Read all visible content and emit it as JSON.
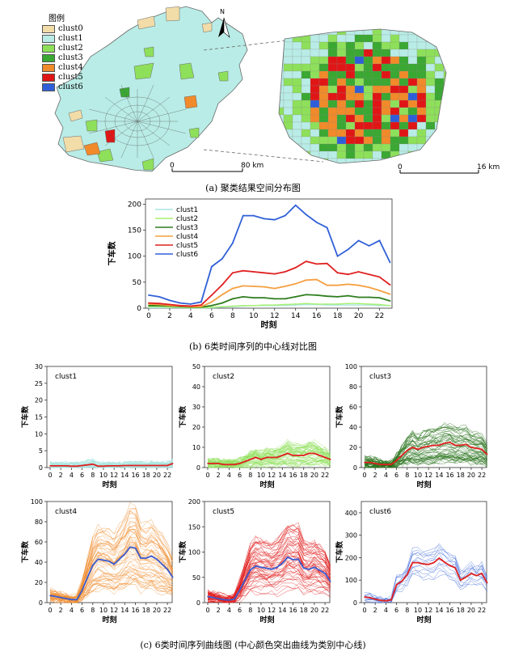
{
  "panel_a": {
    "caption": "(a) 聚类结果空间分布图",
    "legend_title": "图例",
    "legend": [
      {
        "label": "clust0",
        "color": "#f2dca8"
      },
      {
        "label": "clust1",
        "color": "#b9ece6"
      },
      {
        "label": "clust2",
        "color": "#8ee05a"
      },
      {
        "label": "clust3",
        "color": "#3aa832"
      },
      {
        "label": "clust4",
        "color": "#f08a2a"
      },
      {
        "label": "clust5",
        "color": "#e01616"
      },
      {
        "label": "clust6",
        "color": "#2f5fd8"
      }
    ],
    "north_label": "N",
    "scale1": {
      "start": "0",
      "end": "80 km"
    },
    "scale2": {
      "start": "0",
      "end": "16 km"
    },
    "colors": {
      "base": "#b9ece6",
      "road": "#555555",
      "border": "#6a6a6a"
    }
  },
  "panel_b": {
    "caption": "(b) 6类时间序列的中心线对比图"
  },
  "panel_c": {
    "caption": "(c) 6类时间序列曲线图 (中心颜色突出曲线为类别中心线)"
  },
  "chart_data": [
    {
      "type": "line",
      "id": "center-comparison",
      "xlabel": "时刻",
      "ylabel": "下车数",
      "ylim": [
        0,
        210
      ],
      "yticks": [
        0,
        50,
        100,
        150,
        200
      ],
      "xticks": [
        0,
        2,
        4,
        6,
        8,
        10,
        12,
        14,
        16,
        18,
        20,
        22
      ],
      "x": [
        0,
        1,
        2,
        3,
        4,
        5,
        6,
        7,
        8,
        9,
        10,
        11,
        12,
        13,
        14,
        15,
        16,
        17,
        18,
        19,
        20,
        21,
        22,
        23
      ],
      "legend_position": "top-left",
      "series": [
        {
          "name": "clust1",
          "color": "#a8e6e0",
          "values": [
            1,
            1,
            1,
            1,
            0.5,
            0.5,
            1,
            2,
            3,
            4,
            5,
            5,
            5,
            5,
            6,
            7,
            7,
            6,
            6,
            6,
            6,
            6,
            5,
            5
          ]
        },
        {
          "name": "clust2",
          "color": "#a8f070",
          "values": [
            3,
            3,
            2,
            2,
            1,
            1,
            2,
            3,
            4,
            5,
            5,
            6,
            6,
            7,
            8,
            9,
            8,
            8,
            8,
            9,
            9,
            8,
            7,
            5
          ]
        },
        {
          "name": "clust3",
          "color": "#2e7d1e",
          "values": [
            5,
            5,
            4,
            3,
            2,
            2,
            5,
            10,
            18,
            22,
            20,
            20,
            18,
            18,
            22,
            26,
            25,
            23,
            22,
            24,
            21,
            21,
            20,
            14
          ]
        },
        {
          "name": "clust4",
          "color": "#f4a040",
          "values": [
            8,
            7,
            5,
            4,
            3,
            3,
            12,
            26,
            38,
            43,
            42,
            41,
            38,
            42,
            47,
            54,
            55,
            44,
            44,
            46,
            44,
            40,
            34,
            27
          ]
        },
        {
          "name": "clust5",
          "color": "#e02020",
          "values": [
            10,
            9,
            7,
            5,
            4,
            6,
            25,
            45,
            68,
            72,
            70,
            68,
            66,
            70,
            78,
            90,
            85,
            86,
            68,
            65,
            70,
            65,
            60,
            45
          ]
        },
        {
          "name": "clust6",
          "color": "#3060d8",
          "values": [
            25,
            22,
            15,
            10,
            8,
            12,
            80,
            95,
            125,
            178,
            178,
            172,
            170,
            178,
            198,
            180,
            165,
            155,
            100,
            113,
            130,
            120,
            130,
            88
          ]
        }
      ]
    },
    {
      "type": "line",
      "id": "clust1",
      "title": "clust1",
      "xlabel": "时刻",
      "ylabel": "下车数",
      "ylim": [
        0,
        30
      ],
      "yticks": [
        0,
        5,
        10,
        15,
        20,
        25,
        30
      ],
      "xticks": [
        0,
        2,
        4,
        6,
        8,
        10,
        12,
        14,
        16,
        18,
        20,
        22
      ],
      "bundle_color": "#a8e6e0",
      "center_color": "#e02020",
      "center": [
        0.5,
        0.5,
        0.5,
        0.5,
        0.4,
        0.4,
        0.6,
        0.8,
        1.0,
        0.4,
        0.4,
        0.5,
        0.5,
        0.5,
        0.6,
        0.6,
        0.6,
        0.6,
        0.6,
        0.6,
        0.6,
        0.6,
        0.6,
        1.2
      ]
    },
    {
      "type": "line",
      "id": "clust2",
      "title": "clust2",
      "xlabel": "时刻",
      "ylabel": "下车数",
      "ylim": [
        0,
        50
      ],
      "yticks": [
        0,
        10,
        20,
        30,
        40,
        50
      ],
      "xticks": [
        0,
        2,
        4,
        6,
        8,
        10,
        12,
        14,
        16,
        18,
        20,
        22
      ],
      "bundle_color": "#8ee05a",
      "center_color": "#e02020",
      "center": [
        2,
        2,
        2,
        1.5,
        1.5,
        1.5,
        2,
        3,
        4,
        5,
        4,
        5,
        5,
        5,
        6,
        7,
        6,
        6,
        6,
        7,
        7,
        6,
        5,
        4
      ]
    },
    {
      "type": "line",
      "id": "clust3",
      "title": "clust3",
      "xlabel": "时刻",
      "ylabel": "下车数",
      "ylim": [
        0,
        100
      ],
      "yticks": [
        0,
        20,
        40,
        60,
        80,
        100
      ],
      "xticks": [
        0,
        2,
        4,
        6,
        8,
        10,
        12,
        14,
        16,
        18,
        20,
        22
      ],
      "bundle_color": "#1f6e12",
      "center_color": "#e02020",
      "center": [
        5,
        5,
        4,
        3,
        3,
        3,
        7,
        12,
        17,
        20,
        18,
        20,
        21,
        22,
        22,
        24,
        25,
        22,
        22,
        23,
        20,
        19,
        18,
        13
      ]
    },
    {
      "type": "line",
      "id": "clust4",
      "title": "clust4",
      "xlabel": "时刻",
      "ylabel": "下车数",
      "ylim": [
        0,
        100
      ],
      "yticks": [
        0,
        20,
        40,
        60,
        80,
        100
      ],
      "xticks": [
        0,
        2,
        4,
        6,
        8,
        10,
        12,
        14,
        16,
        18,
        20,
        22
      ],
      "bundle_color": "#f08a2a",
      "center_color": "#3a5bd0",
      "center": [
        7,
        6,
        5,
        4,
        3,
        3,
        12,
        25,
        37,
        43,
        42,
        41,
        38,
        43,
        48,
        55,
        54,
        44,
        44,
        46,
        43,
        38,
        33,
        25
      ]
    },
    {
      "type": "line",
      "id": "clust5",
      "title": "clust5",
      "xlabel": "时刻",
      "ylabel": "下车数",
      "ylim": [
        0,
        200
      ],
      "yticks": [
        0,
        50,
        100,
        150,
        200
      ],
      "xticks": [
        0,
        2,
        4,
        6,
        8,
        10,
        12,
        14,
        16,
        18,
        20,
        22
      ],
      "bundle_color": "#e01616",
      "center_color": "#3a5bd0",
      "center": [
        12,
        10,
        8,
        6,
        5,
        7,
        25,
        45,
        65,
        72,
        70,
        68,
        66,
        70,
        78,
        90,
        85,
        86,
        68,
        66,
        70,
        64,
        58,
        42
      ]
    },
    {
      "type": "line",
      "id": "clust6",
      "title": "clust6",
      "xlabel": "时刻",
      "ylabel": "下车数",
      "ylim": [
        0,
        450
      ],
      "yticks": [
        0,
        100,
        200,
        300,
        400
      ],
      "xticks": [
        0,
        2,
        4,
        6,
        8,
        10,
        12,
        14,
        16,
        18,
        20,
        22
      ],
      "bundle_color": "#3060d8",
      "center_color": "#e02020",
      "center": [
        25,
        22,
        15,
        10,
        8,
        12,
        80,
        95,
        125,
        178,
        178,
        172,
        170,
        178,
        198,
        180,
        165,
        155,
        100,
        113,
        130,
        120,
        130,
        88
      ]
    }
  ]
}
